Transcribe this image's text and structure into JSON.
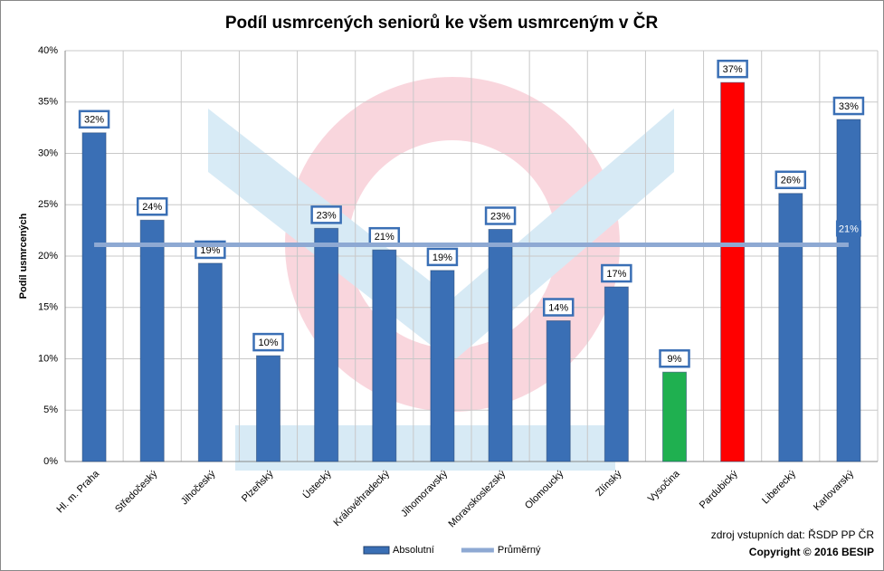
{
  "chart_data": {
    "type": "bar",
    "title": "Podíl usmrcených seniorů ke všem usmrceným v ČR",
    "y_label": "Podíl usmrcených",
    "categories": [
      "Hl. m. Praha",
      "Středočeský",
      "Jihočeský",
      "Plzeňský",
      "Ústecký",
      "Královéhradecký",
      "Jihomoravský",
      "Moravskoslezský",
      "Olomoucký",
      "Zlínský",
      "Vysočina",
      "Pardubický",
      "Liberecký",
      "Karlovarský"
    ],
    "series": [
      {
        "name": "Absolutní",
        "color": "#3a6fb5",
        "colors": [
          "#3a6fb5",
          "#3a6fb5",
          "#3a6fb5",
          "#3a6fb5",
          "#3a6fb5",
          "#3a6fb5",
          "#3a6fb5",
          "#3a6fb5",
          "#3a6fb5",
          "#3a6fb5",
          "#1fb050",
          "#ff0000",
          "#3a6fb5",
          "#3a6fb5"
        ],
        "values": [
          32.0,
          23.5,
          19.3,
          10.3,
          22.7,
          20.6,
          18.6,
          22.6,
          13.7,
          17.0,
          8.7,
          36.9,
          26.1,
          33.3
        ],
        "value_labels": [
          "32%",
          "24%",
          "19%",
          "10%",
          "23%",
          "21%",
          "19%",
          "23%",
          "14%",
          "17%",
          "9%",
          "37%",
          "26%",
          "33%"
        ]
      },
      {
        "name": "Průměrný",
        "type": "line",
        "color": "#8ea9d3",
        "values": [
          21.1,
          21.1,
          21.1,
          21.1,
          21.1,
          21.1,
          21.1,
          21.1,
          21.1,
          21.1,
          21.1,
          21.1,
          21.1,
          21.1
        ],
        "value_labels": [
          null,
          null,
          null,
          null,
          null,
          null,
          null,
          null,
          null,
          null,
          null,
          null,
          null,
          "21%"
        ]
      }
    ],
    "ylim": [
      0,
      40
    ],
    "yticks": [
      {
        "value": 0,
        "label": "0%"
      },
      {
        "value": 5,
        "label": "5%"
      },
      {
        "value": 10,
        "label": "10%"
      },
      {
        "value": 15,
        "label": "15%"
      },
      {
        "value": 20,
        "label": "20%"
      },
      {
        "value": 25,
        "label": "25%"
      },
      {
        "value": 30,
        "label": "30%"
      },
      {
        "value": 35,
        "label": "35%"
      },
      {
        "value": 40,
        "label": "40%"
      }
    ],
    "grid": true,
    "legend": "bottom",
    "source": "zdroj vstupních dat: ŘSDP PP ČR",
    "copyright": "Copyright © 2016  BESIP"
  }
}
